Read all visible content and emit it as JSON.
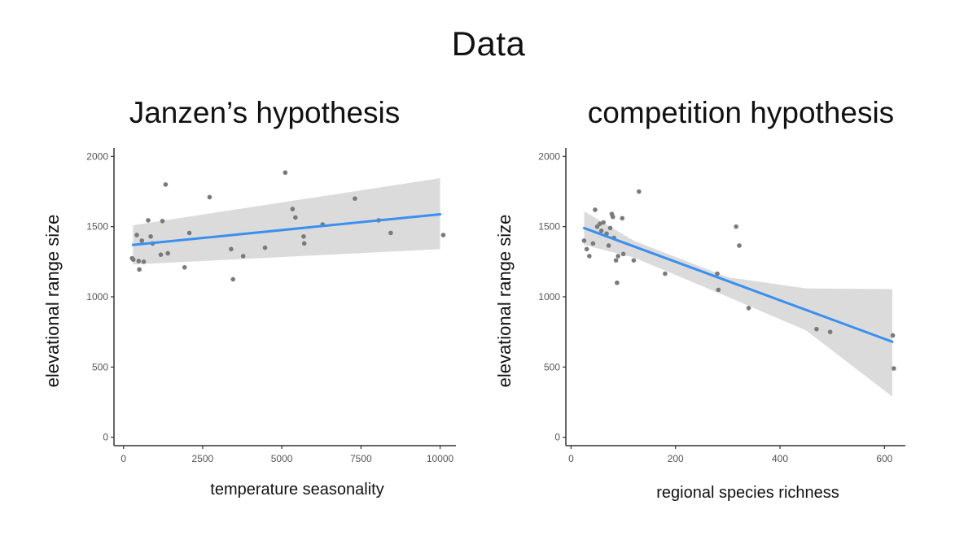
{
  "page": {
    "title": "Data"
  },
  "colors": {
    "fit_line": "#3b8ff0",
    "ci_band": "#d9d9d9",
    "points": "#7a7a7a",
    "axis": "#333333"
  },
  "chart_data": [
    {
      "type": "scatter",
      "title": "Janzen’s hypothesis",
      "xlabel": "temperature seasonality",
      "ylabel": "elevational range size",
      "xlim": [
        -300,
        10500
      ],
      "ylim": [
        -60,
        2060
      ],
      "xticks": [
        0,
        2500,
        5000,
        7500,
        10000
      ],
      "yticks": [
        0,
        500,
        1000,
        1500,
        2000
      ],
      "points": [
        [
          270,
          1275
        ],
        [
          310,
          1265
        ],
        [
          420,
          1440
        ],
        [
          480,
          1255
        ],
        [
          500,
          1195
        ],
        [
          580,
          1400
        ],
        [
          640,
          1250
        ],
        [
          780,
          1545
        ],
        [
          860,
          1430
        ],
        [
          920,
          1380
        ],
        [
          1180,
          1300
        ],
        [
          1230,
          1540
        ],
        [
          1330,
          1800
        ],
        [
          1400,
          1310
        ],
        [
          1930,
          1210
        ],
        [
          2080,
          1455
        ],
        [
          2720,
          1710
        ],
        [
          3400,
          1340
        ],
        [
          3460,
          1125
        ],
        [
          3780,
          1290
        ],
        [
          4470,
          1350
        ],
        [
          5110,
          1885
        ],
        [
          5340,
          1625
        ],
        [
          5430,
          1565
        ],
        [
          5690,
          1430
        ],
        [
          5710,
          1380
        ],
        [
          6290,
          1515
        ],
        [
          7310,
          1700
        ],
        [
          8060,
          1545
        ],
        [
          8440,
          1455
        ],
        [
          10100,
          1440
        ]
      ],
      "fit": {
        "x": [
          300,
          10000
        ],
        "y": [
          1370,
          1588
        ]
      },
      "ci": {
        "x": [
          300,
          10000
        ],
        "upper": [
          1510,
          1845
        ],
        "lower": [
          1230,
          1340
        ]
      },
      "grid": false,
      "legend": "none"
    },
    {
      "type": "scatter",
      "title": "competition hypothesis",
      "xlabel": "regional species richness",
      "ylabel": "elevational range size",
      "xlim": [
        -10,
        640
      ],
      "ylim": [
        -60,
        2060
      ],
      "xticks": [
        0,
        200,
        400,
        600
      ],
      "yticks": [
        0,
        500,
        1000,
        1500,
        2000
      ],
      "points": [
        [
          25,
          1400
        ],
        [
          30,
          1340
        ],
        [
          35,
          1290
        ],
        [
          42,
          1380
        ],
        [
          46,
          1620
        ],
        [
          50,
          1500
        ],
        [
          55,
          1520
        ],
        [
          58,
          1470
        ],
        [
          62,
          1530
        ],
        [
          68,
          1450
        ],
        [
          72,
          1365
        ],
        [
          75,
          1490
        ],
        [
          78,
          1590
        ],
        [
          80,
          1570
        ],
        [
          82,
          1420
        ],
        [
          86,
          1260
        ],
        [
          88,
          1100
        ],
        [
          90,
          1290
        ],
        [
          98,
          1560
        ],
        [
          100,
          1305
        ],
        [
          120,
          1260
        ],
        [
          130,
          1750
        ],
        [
          180,
          1165
        ],
        [
          280,
          1165
        ],
        [
          282,
          1050
        ],
        [
          316,
          1500
        ],
        [
          322,
          1365
        ],
        [
          340,
          920
        ],
        [
          470,
          770
        ],
        [
          496,
          750
        ],
        [
          616,
          725
        ],
        [
          618,
          490
        ]
      ],
      "fit": {
        "x": [
          25,
          615
        ],
        "y": [
          1490,
          680
        ]
      },
      "ci": {
        "x": [
          25,
          120,
          300,
          450,
          615
        ],
        "upper": [
          1610,
          1400,
          1140,
          1060,
          1055
        ],
        "lower": [
          1370,
          1280,
          1000,
          760,
          290
        ]
      },
      "grid": false,
      "legend": "none"
    }
  ]
}
